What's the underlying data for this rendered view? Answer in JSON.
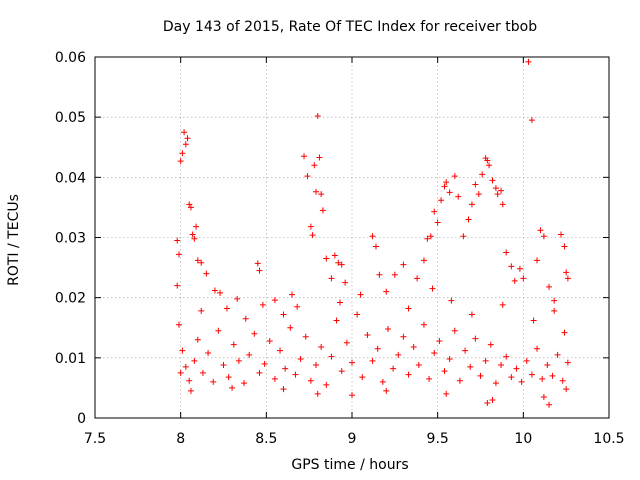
{
  "chart_data": {
    "type": "scatter",
    "title": "Day 143 of 2015, Rate Of TEC Index for receiver tbob",
    "xlabel": "GPS time / hours",
    "ylabel": "ROTI / TECUs",
    "xlim": [
      7.5,
      10.5
    ],
    "ylim": [
      0,
      0.06
    ],
    "xticks": [
      "7.5",
      "8",
      "8.5",
      "9",
      "9.5",
      "10",
      "10.5"
    ],
    "yticks": [
      "0",
      "0.01",
      "0.02",
      "0.03",
      "0.04",
      "0.05",
      "0.06"
    ],
    "grid": true,
    "marker": "+",
    "marker_color": "#ff0000",
    "series": [
      {
        "name": "ROTI",
        "points": [
          [
            7.98,
            0.0295
          ],
          [
            7.99,
            0.0272
          ],
          [
            7.98,
            0.022
          ],
          [
            8.0,
            0.0427
          ],
          [
            8.01,
            0.044
          ],
          [
            8.02,
            0.0475
          ],
          [
            8.03,
            0.0455
          ],
          [
            8.04,
            0.0465
          ],
          [
            8.05,
            0.0355
          ],
          [
            8.06,
            0.035
          ],
          [
            8.07,
            0.0305
          ],
          [
            8.08,
            0.0298
          ],
          [
            8.09,
            0.0318
          ],
          [
            8.1,
            0.0262
          ],
          [
            8.12,
            0.0258
          ],
          [
            8.15,
            0.024
          ],
          [
            8.2,
            0.0212
          ],
          [
            8.23,
            0.0208
          ],
          [
            8.27,
            0.0182
          ],
          [
            8.33,
            0.0198
          ],
          [
            8.45,
            0.0257
          ],
          [
            8.46,
            0.0245
          ],
          [
            8.48,
            0.0188
          ],
          [
            8.55,
            0.0196
          ],
          [
            8.6,
            0.0172
          ],
          [
            8.65,
            0.0205
          ],
          [
            8.72,
            0.0435
          ],
          [
            8.74,
            0.0402
          ],
          [
            8.76,
            0.0318
          ],
          [
            8.77,
            0.0304
          ],
          [
            8.78,
            0.042
          ],
          [
            8.79,
            0.0376
          ],
          [
            8.8,
            0.0502
          ],
          [
            8.81,
            0.0433
          ],
          [
            8.82,
            0.0372
          ],
          [
            8.83,
            0.0345
          ],
          [
            8.85,
            0.0265
          ],
          [
            8.88,
            0.0232
          ],
          [
            8.9,
            0.027
          ],
          [
            8.92,
            0.0258
          ],
          [
            8.94,
            0.0255
          ],
          [
            8.96,
            0.0225
          ],
          [
            9.12,
            0.0302
          ],
          [
            9.14,
            0.0285
          ],
          [
            9.16,
            0.0238
          ],
          [
            9.2,
            0.021
          ],
          [
            9.25,
            0.0238
          ],
          [
            9.3,
            0.0255
          ],
          [
            9.38,
            0.0232
          ],
          [
            9.42,
            0.0262
          ],
          [
            9.44,
            0.0298
          ],
          [
            9.46,
            0.0302
          ],
          [
            9.48,
            0.0343
          ],
          [
            9.5,
            0.0325
          ],
          [
            9.52,
            0.0362
          ],
          [
            9.54,
            0.0385
          ],
          [
            9.55,
            0.0392
          ],
          [
            9.57,
            0.0375
          ],
          [
            9.6,
            0.0402
          ],
          [
            9.62,
            0.0368
          ],
          [
            9.65,
            0.0302
          ],
          [
            9.68,
            0.033
          ],
          [
            9.7,
            0.0355
          ],
          [
            9.72,
            0.0388
          ],
          [
            9.74,
            0.0372
          ],
          [
            9.76,
            0.0405
          ],
          [
            9.78,
            0.0432
          ],
          [
            9.79,
            0.0428
          ],
          [
            9.8,
            0.042
          ],
          [
            9.82,
            0.0395
          ],
          [
            9.84,
            0.0382
          ],
          [
            9.85,
            0.0372
          ],
          [
            9.87,
            0.0378
          ],
          [
            9.88,
            0.0355
          ],
          [
            9.9,
            0.0275
          ],
          [
            9.93,
            0.0252
          ],
          [
            9.95,
            0.0228
          ],
          [
            9.98,
            0.0248
          ],
          [
            10.0,
            0.0232
          ],
          [
            10.03,
            0.0592
          ],
          [
            10.05,
            0.0495
          ],
          [
            10.08,
            0.0262
          ],
          [
            10.1,
            0.0312
          ],
          [
            10.12,
            0.0302
          ],
          [
            10.15,
            0.0218
          ],
          [
            10.18,
            0.0195
          ],
          [
            10.22,
            0.0305
          ],
          [
            10.24,
            0.0285
          ],
          [
            10.25,
            0.0242
          ],
          [
            10.26,
            0.0232
          ],
          [
            7.99,
            0.0155
          ],
          [
            8.01,
            0.0112
          ],
          [
            8.03,
            0.0085
          ],
          [
            8.05,
            0.0062
          ],
          [
            8.08,
            0.0095
          ],
          [
            8.1,
            0.013
          ],
          [
            8.13,
            0.0075
          ],
          [
            8.16,
            0.0108
          ],
          [
            8.19,
            0.006
          ],
          [
            8.22,
            0.0145
          ],
          [
            8.25,
            0.0088
          ],
          [
            8.28,
            0.0068
          ],
          [
            8.31,
            0.0122
          ],
          [
            8.34,
            0.0095
          ],
          [
            8.37,
            0.0058
          ],
          [
            8.4,
            0.0105
          ],
          [
            8.43,
            0.014
          ],
          [
            8.46,
            0.0075
          ],
          [
            8.49,
            0.009
          ],
          [
            8.52,
            0.0128
          ],
          [
            8.55,
            0.0065
          ],
          [
            8.58,
            0.0112
          ],
          [
            8.61,
            0.0082
          ],
          [
            8.64,
            0.015
          ],
          [
            8.67,
            0.0072
          ],
          [
            8.7,
            0.0098
          ],
          [
            8.73,
            0.0135
          ],
          [
            8.76,
            0.0062
          ],
          [
            8.79,
            0.0088
          ],
          [
            8.82,
            0.0118
          ],
          [
            8.85,
            0.0055
          ],
          [
            8.88,
            0.0102
          ],
          [
            8.91,
            0.0162
          ],
          [
            8.94,
            0.0078
          ],
          [
            8.97,
            0.0125
          ],
          [
            9.0,
            0.0092
          ],
          [
            9.03,
            0.0172
          ],
          [
            9.06,
            0.0068
          ],
          [
            9.09,
            0.0138
          ],
          [
            9.12,
            0.0095
          ],
          [
            9.15,
            0.0115
          ],
          [
            9.18,
            0.006
          ],
          [
            9.21,
            0.0148
          ],
          [
            9.24,
            0.0082
          ],
          [
            9.27,
            0.0105
          ],
          [
            9.3,
            0.0135
          ],
          [
            9.33,
            0.0072
          ],
          [
            9.36,
            0.0118
          ],
          [
            9.39,
            0.0088
          ],
          [
            9.42,
            0.0155
          ],
          [
            9.45,
            0.0065
          ],
          [
            9.48,
            0.0108
          ],
          [
            9.51,
            0.0128
          ],
          [
            9.54,
            0.0078
          ],
          [
            9.57,
            0.0098
          ],
          [
            9.6,
            0.0145
          ],
          [
            9.63,
            0.0062
          ],
          [
            9.66,
            0.0112
          ],
          [
            9.69,
            0.0085
          ],
          [
            9.72,
            0.0132
          ],
          [
            9.75,
            0.007
          ],
          [
            9.78,
            0.0095
          ],
          [
            9.81,
            0.0122
          ],
          [
            9.84,
            0.0058
          ],
          [
            9.87,
            0.0088
          ],
          [
            9.9,
            0.0102
          ],
          [
            9.93,
            0.0068
          ],
          [
            9.96,
            0.0082
          ],
          [
            9.99,
            0.006
          ],
          [
            10.02,
            0.0095
          ],
          [
            10.05,
            0.0072
          ],
          [
            10.08,
            0.0115
          ],
          [
            10.11,
            0.0065
          ],
          [
            10.14,
            0.0088
          ],
          [
            10.17,
            0.007
          ],
          [
            10.2,
            0.0105
          ],
          [
            10.23,
            0.0062
          ],
          [
            10.26,
            0.0092
          ],
          [
            8.0,
            0.0075
          ],
          [
            8.06,
            0.0045
          ],
          [
            8.3,
            0.005
          ],
          [
            8.6,
            0.0048
          ],
          [
            8.8,
            0.004
          ],
          [
            9.0,
            0.0038
          ],
          [
            9.2,
            0.0045
          ],
          [
            9.55,
            0.004
          ],
          [
            9.79,
            0.0025
          ],
          [
            9.82,
            0.003
          ],
          [
            10.12,
            0.0035
          ],
          [
            10.15,
            0.0022
          ],
          [
            10.25,
            0.0048
          ],
          [
            8.12,
            0.0178
          ],
          [
            8.38,
            0.0165
          ],
          [
            8.68,
            0.0185
          ],
          [
            8.93,
            0.0192
          ],
          [
            9.05,
            0.0205
          ],
          [
            9.33,
            0.0182
          ],
          [
            9.47,
            0.0215
          ],
          [
            9.58,
            0.0195
          ],
          [
            9.7,
            0.0172
          ],
          [
            9.88,
            0.0188
          ],
          [
            10.06,
            0.0162
          ],
          [
            10.18,
            0.0178
          ],
          [
            10.24,
            0.0142
          ]
        ]
      }
    ]
  }
}
